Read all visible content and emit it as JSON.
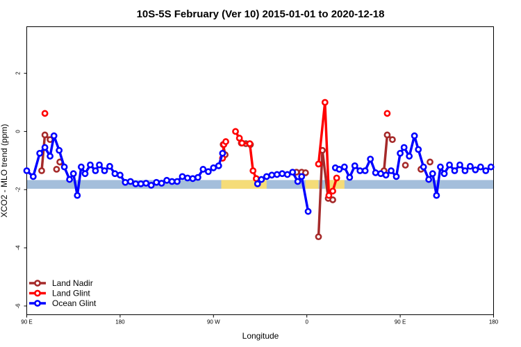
{
  "chart_data": {
    "type": "line",
    "title": "10S-5S February (Ver 10)   2015-01-01 to 2020-12-18",
    "xlabel": "Longitude",
    "ylabel": "XCO2 - MLO trend (ppm)",
    "xlim": [
      90,
      450
    ],
    "ylim": [
      -6.3,
      3.6
    ],
    "x_ticks": [
      {
        "value": 90,
        "label": "90 E"
      },
      {
        "value": 162,
        "label": "180"
      },
      {
        "value": 234,
        "label": "90 W"
      },
      {
        "value": 306,
        "label": "0"
      },
      {
        "value": 378,
        "label": "90 E"
      },
      {
        "value": 450,
        "label": "180"
      }
    ],
    "y_ticks": [
      {
        "value": 2,
        "label": "2"
      },
      {
        "value": 0,
        "label": "0"
      },
      {
        "value": -2,
        "label": "-2"
      },
      {
        "value": -4,
        "label": "-4"
      },
      {
        "value": -6,
        "label": "-6"
      }
    ],
    "grid": false,
    "legend_position": "bottom-left",
    "series": [
      {
        "name": "Land Nadir",
        "color": "#a52a2a",
        "segments": [
          [
            [
              101.5,
              -1.35
            ],
            [
              104,
              -0.12
            ],
            [
              108,
              -0.28
            ]
          ],
          [
            [
              116,
              -1.05
            ],
            [
              115.5,
              -1.05
            ]
          ],
          [
            [
              365.5,
              -1.35
            ],
            [
              368,
              -0.12
            ],
            [
              372,
              -0.28
            ]
          ],
          [
            [
              382,
              -1.16
            ]
          ],
          [
            [
              401,
              -1.05
            ]
          ],
          [
            [
              241.5,
              -0.45
            ],
            [
              243,
              -0.8
            ]
          ],
          [
            [
              255.5,
              -0.4
            ],
            [
              259,
              -0.42
            ],
            [
              262.5,
              -0.45
            ]
          ],
          [
            [
              298,
              -1.4
            ],
            [
              302,
              -1.4
            ]
          ],
          [
            [
              305,
              -1.42
            ]
          ],
          [
            [
              315,
              -3.62
            ],
            [
              318,
              -0.65
            ],
            [
              322.5,
              -2.3
            ],
            [
              326,
              -2.35
            ]
          ],
          [
            [
              113,
              -1.3
            ]
          ],
          [
            [
              394,
              -1.3
            ]
          ]
        ]
      },
      {
        "name": "Land Glint",
        "color": "#ff0000",
        "segments": [
          [
            [
              104,
              0.62
            ]
          ],
          [
            [
              368,
              0.62
            ]
          ],
          [
            [
              241,
              -0.92
            ],
            [
              242,
              -0.45
            ],
            [
              243.5,
              -0.35
            ]
          ],
          [
            [
              251,
              0.0
            ],
            [
              254,
              -0.23
            ],
            [
              256,
              -0.4
            ],
            [
              262,
              -0.42
            ],
            [
              264.5,
              -1.35
            ],
            [
              267,
              -1.62
            ]
          ],
          [
            [
              315,
              -1.12
            ],
            [
              320,
              1.0
            ],
            [
              323,
              -2.2
            ],
            [
              326,
              -2.05
            ],
            [
              329,
              -1.6
            ]
          ]
        ]
      },
      {
        "name": "Ocean Glint",
        "color": "#0000ff",
        "segments": [
          [
            [
              90,
              -1.35
            ],
            [
              95,
              -1.55
            ],
            [
              100,
              -0.75
            ],
            [
              104,
              -0.55
            ],
            [
              108,
              -0.85
            ],
            [
              111,
              -0.15
            ],
            [
              115,
              -0.65
            ],
            [
              119,
              -1.22
            ],
            [
              123,
              -1.65
            ],
            [
              126,
              -1.45
            ],
            [
              129,
              -2.2
            ],
            [
              132,
              -1.22
            ],
            [
              135,
              -1.45
            ],
            [
              139,
              -1.15
            ],
            [
              143,
              -1.35
            ],
            [
              146,
              -1.15
            ],
            [
              150,
              -1.35
            ],
            [
              154,
              -1.2
            ],
            [
              158,
              -1.45
            ],
            [
              162,
              -1.5
            ],
            [
              166,
              -1.75
            ],
            [
              170,
              -1.72
            ],
            [
              174,
              -1.8
            ],
            [
              178,
              -1.8
            ],
            [
              182,
              -1.78
            ],
            [
              186,
              -1.85
            ],
            [
              190,
              -1.75
            ],
            [
              194,
              -1.78
            ],
            [
              198,
              -1.68
            ],
            [
              202,
              -1.72
            ],
            [
              206,
              -1.72
            ],
            [
              210,
              -1.55
            ],
            [
              214,
              -1.6
            ],
            [
              218,
              -1.62
            ],
            [
              222,
              -1.58
            ],
            [
              226,
              -1.3
            ],
            [
              230,
              -1.38
            ],
            [
              234,
              -1.25
            ],
            [
              238,
              -1.18
            ],
            [
              241,
              -0.75
            ]
          ],
          [
            [
              268,
              -1.8
            ],
            [
              271,
              -1.65
            ],
            [
              275,
              -1.55
            ],
            [
              279,
              -1.5
            ],
            [
              283,
              -1.48
            ],
            [
              287,
              -1.45
            ],
            [
              291,
              -1.48
            ],
            [
              295,
              -1.4
            ],
            [
              299,
              -1.72
            ],
            [
              302,
              -1.55
            ],
            [
              307,
              -2.75
            ]
          ],
          [
            [
              328,
              -1.25
            ],
            [
              331,
              -1.3
            ],
            [
              335,
              -1.22
            ],
            [
              339,
              -1.58
            ],
            [
              343,
              -1.18
            ],
            [
              347,
              -1.35
            ],
            [
              351,
              -1.35
            ],
            [
              355,
              -0.95
            ],
            [
              359,
              -1.42
            ],
            [
              363,
              -1.45
            ],
            [
              367,
              -1.5
            ],
            [
              371,
              -1.35
            ],
            [
              375,
              -1.55
            ],
            [
              378,
              -0.75
            ],
            [
              381,
              -0.55
            ],
            [
              385,
              -0.85
            ],
            [
              389,
              -0.15
            ],
            [
              392,
              -0.62
            ],
            [
              396,
              -1.22
            ],
            [
              400,
              -1.65
            ],
            [
              403,
              -1.45
            ],
            [
              406,
              -2.2
            ],
            [
              409,
              -1.22
            ],
            [
              412,
              -1.45
            ],
            [
              416,
              -1.15
            ],
            [
              420,
              -1.35
            ],
            [
              424,
              -1.15
            ],
            [
              428,
              -1.35
            ],
            [
              432,
              -1.2
            ],
            [
              436,
              -1.32
            ],
            [
              440,
              -1.22
            ],
            [
              444,
              -1.35
            ],
            [
              448,
              -1.22
            ]
          ]
        ]
      }
    ],
    "background_band": {
      "y_range": [
        -1.97,
        -1.67
      ],
      "ocean_color": "#a4bedb",
      "land_color": "#f5dc78",
      "land_spans": [
        [
          240,
          275
        ],
        [
          305,
          315
        ],
        [
          320,
          335
        ]
      ]
    }
  }
}
